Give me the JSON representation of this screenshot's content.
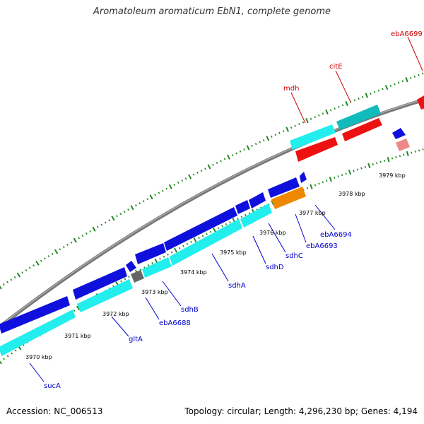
{
  "title": "Aromatoleum aromaticum EbN1, complete genome",
  "accession": "Accession: NC_006513",
  "summary": "Topology: circular; Length: 4,296,230 bp; Genes: 4,194",
  "kbp_labels": [
    "3970 kbp",
    "3971 kbp",
    "3972 kbp",
    "3973 kbp",
    "3974 kbp",
    "3975 kbp",
    "3976 kbp",
    "3977 kbp",
    "3978 kbp",
    "3979 kbp"
  ],
  "gene_labels_forward": [
    "mdh",
    "citE",
    "ebA6699"
  ],
  "gene_labels_reverse": [
    "sucA",
    "gltA",
    "ebA6688",
    "sdhB",
    "sdhA",
    "sdhD",
    "sdhC",
    "ebA6693",
    "ebA6694"
  ],
  "colors": {
    "backbone": "#888888",
    "cds_reverse": "#1010dd",
    "cds_forward": "#ee1111",
    "gene": "#22eeee",
    "gene_dark": "#11bbbb",
    "orange": "#ee8800",
    "pink": "#ee8888",
    "gray_gene": "#666666",
    "tick": "#228822",
    "label_blue": "#0000cc",
    "label_red": "#cc0000"
  }
}
